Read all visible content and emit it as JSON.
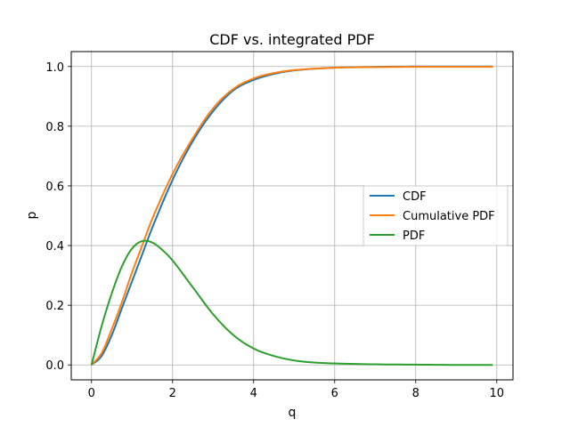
{
  "chart_data": {
    "type": "line",
    "title": "CDF vs. integrated PDF",
    "xlabel": "q",
    "ylabel": "p",
    "xlim": [
      -0.5,
      10.4
    ],
    "ylim": [
      -0.05,
      1.05
    ],
    "xticks": [
      0,
      2,
      4,
      6,
      8,
      10
    ],
    "yticks": [
      0.0,
      0.2,
      0.4,
      0.6,
      0.8,
      1.0
    ],
    "xtick_labels": [
      "0",
      "2",
      "4",
      "6",
      "8",
      "10"
    ],
    "ytick_labels": [
      "0.0",
      "0.2",
      "0.4",
      "0.6",
      "0.8",
      "1.0"
    ],
    "grid": true,
    "legend_position": "center-right",
    "series": [
      {
        "name": "CDF",
        "color": "#1f77b4",
        "x": [
          0,
          0.25,
          0.5,
          0.75,
          1.0,
          1.25,
          1.5,
          2.0,
          2.5,
          3.0,
          3.5,
          4.0,
          4.5,
          5.0,
          6.0,
          7.0,
          8.0,
          9.0,
          9.9
        ],
        "y": [
          0.0,
          0.03,
          0.1,
          0.19,
          0.28,
          0.37,
          0.46,
          0.62,
          0.75,
          0.85,
          0.92,
          0.955,
          0.975,
          0.987,
          0.996,
          0.999,
          1.0,
          1.0,
          1.0
        ]
      },
      {
        "name": "Cumulative PDF",
        "color": "#ff7f0e",
        "x": [
          0,
          0.25,
          0.5,
          0.75,
          1.0,
          1.25,
          1.5,
          2.0,
          2.5,
          3.0,
          3.5,
          4.0,
          4.5,
          5.0,
          6.0,
          7.0,
          8.0,
          9.0,
          9.9
        ],
        "y": [
          0.0,
          0.04,
          0.12,
          0.21,
          0.31,
          0.4,
          0.49,
          0.64,
          0.76,
          0.86,
          0.925,
          0.96,
          0.978,
          0.988,
          0.996,
          0.998,
          0.999,
          0.999,
          0.999
        ]
      },
      {
        "name": "PDF",
        "color": "#2ca02c",
        "x": [
          0,
          0.25,
          0.5,
          0.75,
          1.0,
          1.25,
          1.5,
          1.75,
          2.0,
          2.5,
          3.0,
          3.5,
          4.0,
          4.5,
          5.0,
          5.5,
          6.0,
          7.0,
          8.0,
          9.0,
          9.9
        ],
        "y": [
          0.0,
          0.13,
          0.24,
          0.33,
          0.39,
          0.415,
          0.41,
          0.385,
          0.35,
          0.26,
          0.17,
          0.1,
          0.055,
          0.03,
          0.015,
          0.008,
          0.005,
          0.002,
          0.001,
          0.0,
          0.0
        ]
      }
    ]
  }
}
